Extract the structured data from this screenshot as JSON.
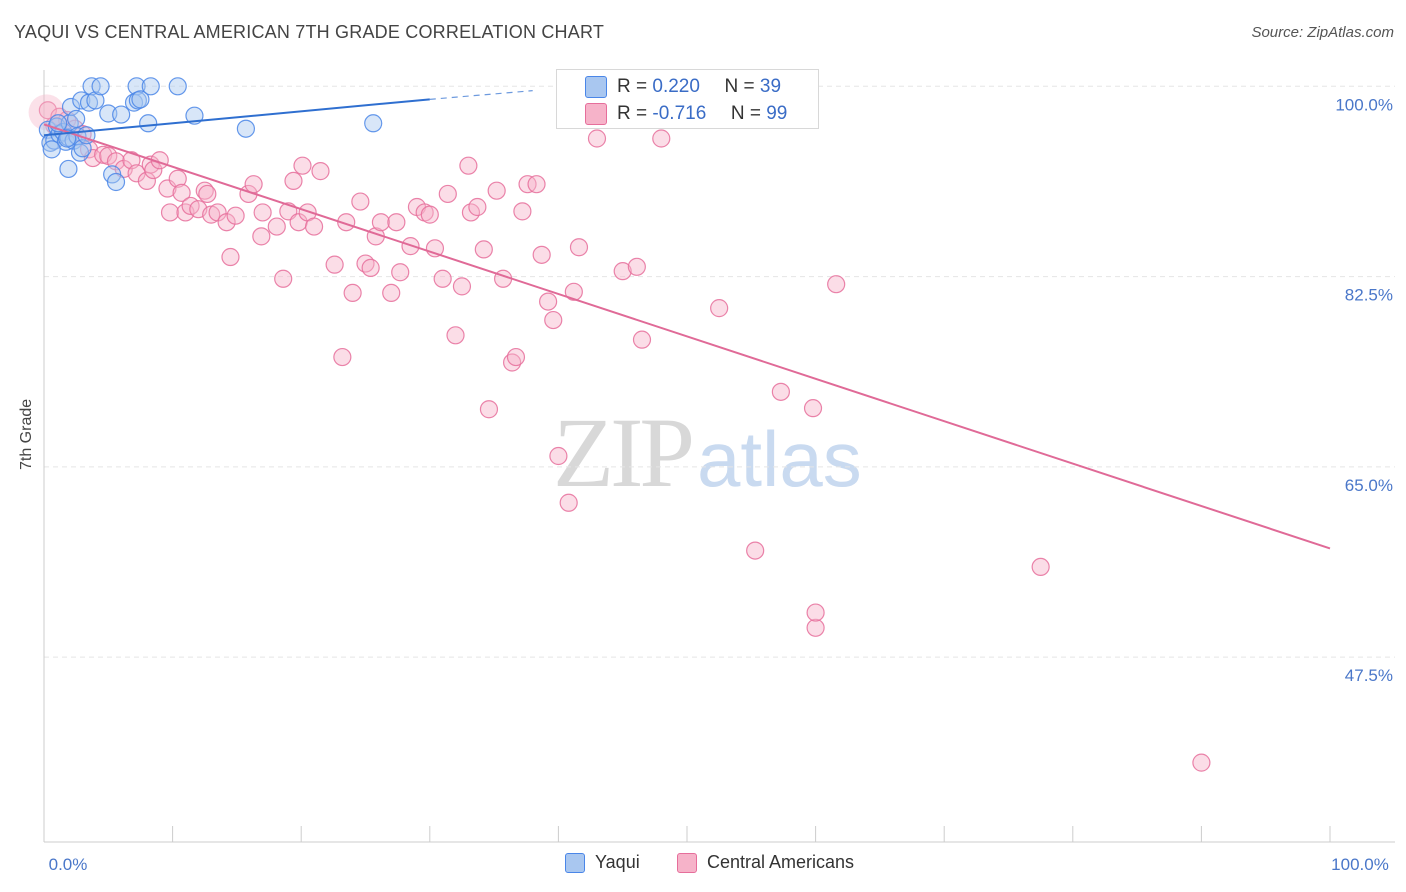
{
  "header": {
    "title": "YAQUI VS CENTRAL AMERICAN 7TH GRADE CORRELATION CHART",
    "source": "Source: ZipAtlas.com"
  },
  "watermark": {
    "zip": "ZIP",
    "atlas": "atlas"
  },
  "colors": {
    "blue": "#4a86e8",
    "blue_fill": "#a9c7f0",
    "blue_line": "#2f6fd0",
    "pink": "#e66e9b",
    "pink_fill": "#f6b3c9",
    "pink_line": "#e06a97",
    "tick_text": "#4a77c9",
    "grid": "#e5e5e5"
  },
  "legend": {
    "row1": {
      "r_label": "R =",
      "r_value": "0.220",
      "n_label": "N =",
      "n_value": "39"
    },
    "row2": {
      "r_label": "R =",
      "r_value": "-0.716",
      "n_label": "N =",
      "n_value": "99"
    }
  },
  "bottom_legend": {
    "series1": "Yaqui",
    "series2": "Central Americans"
  },
  "chart_data": {
    "type": "scatter",
    "title": "YAQUI VS CENTRAL AMERICAN 7TH GRADE CORRELATION CHART",
    "xlabel": "",
    "ylabel": "7th Grade",
    "xlim": [
      0,
      100
    ],
    "ylim": [
      30.5,
      101.5
    ],
    "x_tick_labels": [
      "0.0%",
      "100.0%"
    ],
    "y_ticks": [
      100.0,
      82.5,
      65.0,
      47.5
    ],
    "y_tick_labels": [
      "100.0%",
      "82.5%",
      "65.0%",
      "47.5%"
    ],
    "series": [
      {
        "name": "Yaqui",
        "R": 0.22,
        "N": 39,
        "trend": {
          "x": [
            0,
            30
          ],
          "y": [
            95.5,
            98.8
          ],
          "dashed_to": [
            38,
            99.6
          ]
        },
        "points": [
          [
            0.3,
            96.0
          ],
          [
            0.5,
            94.8
          ],
          [
            0.8,
            95.0
          ],
          [
            1.0,
            96.3
          ],
          [
            1.2,
            95.6
          ],
          [
            1.5,
            95.8
          ],
          [
            1.7,
            94.9
          ],
          [
            1.9,
            95.3
          ],
          [
            2.0,
            96.6
          ],
          [
            2.3,
            95.0
          ],
          [
            2.6,
            95.4
          ],
          [
            2.8,
            93.9
          ],
          [
            3.0,
            94.3
          ],
          [
            3.3,
            95.5
          ],
          [
            0.6,
            94.2
          ],
          [
            1.1,
            96.6
          ],
          [
            1.8,
            95.2
          ],
          [
            2.1,
            98.1
          ],
          [
            2.5,
            97.0
          ],
          [
            2.9,
            98.7
          ],
          [
            3.5,
            98.5
          ],
          [
            3.7,
            100.0
          ],
          [
            4.0,
            98.7
          ],
          [
            4.4,
            100.0
          ],
          [
            5.0,
            97.5
          ],
          [
            5.3,
            91.9
          ],
          [
            5.6,
            91.2
          ],
          [
            6.0,
            97.4
          ],
          [
            7.0,
            98.5
          ],
          [
            7.2,
            100.0
          ],
          [
            7.3,
            98.7
          ],
          [
            7.5,
            98.8
          ],
          [
            8.1,
            96.6
          ],
          [
            8.3,
            100.0
          ],
          [
            10.4,
            100.0
          ],
          [
            11.7,
            97.3
          ],
          [
            1.9,
            92.4
          ],
          [
            15.7,
            96.1
          ],
          [
            25.6,
            96.6
          ]
        ]
      },
      {
        "name": "Central Americans",
        "R": -0.716,
        "N": 99,
        "trend": {
          "x": [
            0,
            100
          ],
          "y": [
            96.5,
            57.5
          ]
        },
        "points": [
          [
            0.3,
            97.8
          ],
          [
            0.8,
            96.4
          ],
          [
            1.2,
            97.2
          ],
          [
            1.8,
            96.9
          ],
          [
            2.4,
            96.1
          ],
          [
            3.0,
            95.6
          ],
          [
            3.5,
            94.2
          ],
          [
            3.8,
            93.4
          ],
          [
            4.6,
            93.7
          ],
          [
            5.0,
            93.6
          ],
          [
            5.6,
            93.1
          ],
          [
            6.2,
            92.4
          ],
          [
            6.8,
            93.2
          ],
          [
            7.2,
            92.0
          ],
          [
            8.0,
            91.3
          ],
          [
            8.3,
            92.8
          ],
          [
            8.5,
            92.3
          ],
          [
            9.0,
            93.2
          ],
          [
            9.6,
            90.6
          ],
          [
            9.8,
            88.4
          ],
          [
            10.4,
            91.5
          ],
          [
            10.7,
            90.2
          ],
          [
            11.0,
            88.4
          ],
          [
            11.4,
            89.0
          ],
          [
            12.0,
            88.7
          ],
          [
            12.5,
            90.4
          ],
          [
            12.7,
            90.1
          ],
          [
            13.0,
            88.2
          ],
          [
            13.5,
            88.4
          ],
          [
            14.2,
            87.5
          ],
          [
            14.5,
            84.3
          ],
          [
            14.9,
            88.1
          ],
          [
            15.9,
            90.1
          ],
          [
            16.3,
            91.0
          ],
          [
            16.9,
            86.2
          ],
          [
            17.0,
            88.4
          ],
          [
            18.1,
            87.1
          ],
          [
            18.6,
            82.3
          ],
          [
            19.0,
            88.5
          ],
          [
            19.4,
            91.3
          ],
          [
            19.8,
            87.5
          ],
          [
            20.1,
            92.7
          ],
          [
            20.5,
            88.4
          ],
          [
            21.0,
            87.1
          ],
          [
            21.5,
            92.2
          ],
          [
            22.6,
            83.6
          ],
          [
            23.2,
            75.1
          ],
          [
            23.5,
            87.5
          ],
          [
            24.0,
            81.0
          ],
          [
            24.6,
            89.4
          ],
          [
            25.0,
            83.7
          ],
          [
            25.4,
            83.3
          ],
          [
            25.8,
            86.2
          ],
          [
            26.2,
            87.5
          ],
          [
            27.0,
            81.0
          ],
          [
            27.4,
            87.5
          ],
          [
            27.7,
            82.9
          ],
          [
            28.5,
            85.3
          ],
          [
            29.0,
            88.9
          ],
          [
            29.6,
            88.4
          ],
          [
            30.0,
            88.2
          ],
          [
            30.4,
            85.1
          ],
          [
            31.0,
            82.3
          ],
          [
            31.4,
            90.1
          ],
          [
            32.0,
            77.1
          ],
          [
            32.5,
            81.6
          ],
          [
            33.0,
            92.7
          ],
          [
            33.2,
            88.4
          ],
          [
            33.7,
            88.9
          ],
          [
            34.2,
            85.0
          ],
          [
            34.6,
            70.3
          ],
          [
            35.2,
            90.4
          ],
          [
            35.7,
            82.3
          ],
          [
            36.4,
            74.6
          ],
          [
            36.7,
            75.1
          ],
          [
            37.2,
            88.5
          ],
          [
            37.6,
            91.0
          ],
          [
            38.3,
            91.0
          ],
          [
            38.7,
            84.5
          ],
          [
            39.2,
            80.2
          ],
          [
            39.6,
            78.5
          ],
          [
            40.0,
            66.0
          ],
          [
            40.8,
            61.7
          ],
          [
            41.2,
            81.1
          ],
          [
            41.6,
            85.2
          ],
          [
            43.0,
            95.2
          ],
          [
            45.0,
            83.0
          ],
          [
            46.1,
            83.4
          ],
          [
            46.5,
            76.7
          ],
          [
            48.0,
            95.2
          ],
          [
            52.5,
            79.6
          ],
          [
            55.3,
            57.3
          ],
          [
            57.3,
            71.9
          ],
          [
            59.8,
            70.4
          ],
          [
            60.0,
            50.2
          ],
          [
            61.6,
            81.8
          ],
          [
            77.5,
            55.8
          ],
          [
            90.0,
            37.8
          ],
          [
            60.0,
            51.6
          ]
        ]
      }
    ]
  }
}
